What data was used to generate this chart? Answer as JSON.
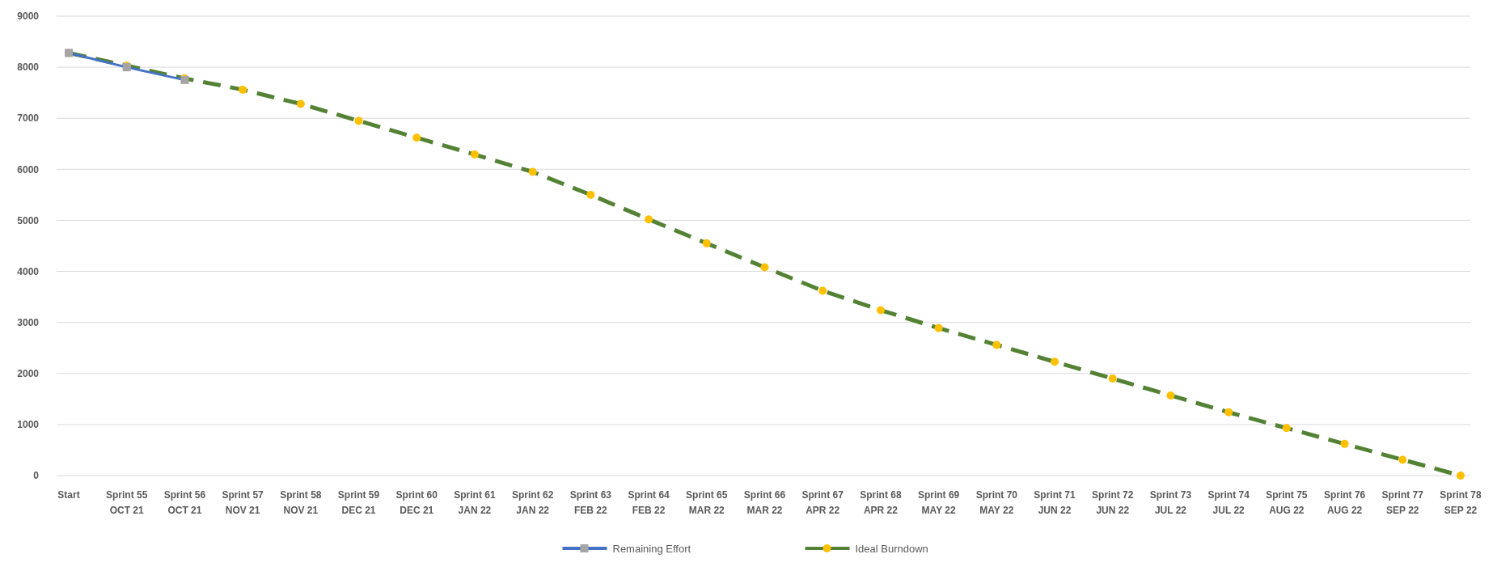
{
  "chart_data": {
    "type": "line",
    "categories": [
      "Start",
      "Sprint 55\nOCT 21",
      "Sprint 56\nOCT 21",
      "Sprint 57\nNOV 21",
      "Sprint 58\nNOV 21",
      "Sprint 59\nDEC 21",
      "Sprint 60\nDEC 21",
      "Sprint 61\nJAN 22",
      "Sprint 62\nJAN 22",
      "Sprint 63\nFEB 22",
      "Sprint 64\nFEB 22",
      "Sprint 65\nMAR 22",
      "Sprint 66\nMAR 22",
      "Sprint 67\nAPR 22",
      "Sprint 68\nAPR 22",
      "Sprint 69\nMAY 22",
      "Sprint 70\nMAY 22",
      "Sprint 71\nJUN 22",
      "Sprint 72\nJUN 22",
      "Sprint 73\nJUL 22",
      "Sprint 74\nJUL 22",
      "Sprint 75\nAUG 22",
      "Sprint 76\nAUG 22",
      "Sprint 77\nSEP 22",
      "Sprint 78\nSEP 22"
    ],
    "series": [
      {
        "name": "Remaining Effort",
        "color": "#4472c4",
        "marker": "square",
        "line_style": "solid",
        "values": [
          8280,
          8000,
          7750,
          null,
          null,
          null,
          null,
          null,
          null,
          null,
          null,
          null,
          null,
          null,
          null,
          null,
          null,
          null,
          null,
          null,
          null,
          null,
          null,
          null,
          null
        ]
      },
      {
        "name": "Ideal Burndown",
        "color": "#548235",
        "marker": "circle",
        "line_style": "dashed",
        "values": [
          8280,
          8030,
          7780,
          7560,
          7280,
          6950,
          6620,
          6290,
          5950,
          5500,
          5020,
          4550,
          4080,
          3620,
          3240,
          2890,
          2560,
          2230,
          1900,
          1570,
          1240,
          930,
          620,
          310,
          0
        ]
      }
    ],
    "ylim": [
      0,
      9000
    ],
    "yticks": [
      0,
      1000,
      2000,
      3000,
      4000,
      5000,
      6000,
      7000,
      8000,
      9000
    ],
    "grid": "y",
    "legend": "bottom"
  }
}
